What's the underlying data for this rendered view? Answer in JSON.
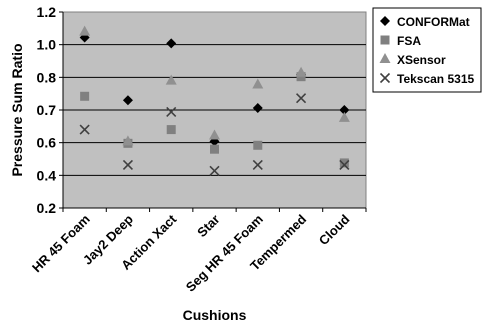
{
  "chart_data": {
    "type": "scatter",
    "title": "",
    "xlabel": "Cushions",
    "ylabel": "Pressure Sum Ratio",
    "categories": [
      "HR 45 Foam",
      "Jay2 Deep",
      "Action Xact",
      "Star",
      "Seg HR 45 Foam",
      "Tempermed",
      "Cloud"
    ],
    "ylim": [
      0.2,
      1.2
    ],
    "yticks": [
      "0.2",
      "0.4",
      "0.6",
      "0.7",
      "0.8",
      "1.0",
      "1.2"
    ],
    "grid": true,
    "legend_position": "top-right",
    "series": [
      {
        "name": "CONFORMat",
        "marker": "diamond",
        "color": "#000000",
        "values": [
          1.07,
          0.75,
          1.04,
          0.54,
          0.71,
          0.88,
          0.7
        ]
      },
      {
        "name": "FSA",
        "marker": "square",
        "color": "#808080",
        "values": [
          0.77,
          0.53,
          0.6,
          0.5,
          0.52,
          0.87,
          0.43
        ]
      },
      {
        "name": "XSensor",
        "marker": "triangle",
        "color": "#909090",
        "values": [
          1.1,
          0.54,
          0.85,
          0.57,
          0.83,
          0.89,
          0.66
        ]
      },
      {
        "name": "Tekscan 5315",
        "marker": "x",
        "color": "#404040",
        "values": [
          0.6,
          0.42,
          0.69,
          0.39,
          0.42,
          0.76,
          0.42
        ]
      }
    ]
  }
}
